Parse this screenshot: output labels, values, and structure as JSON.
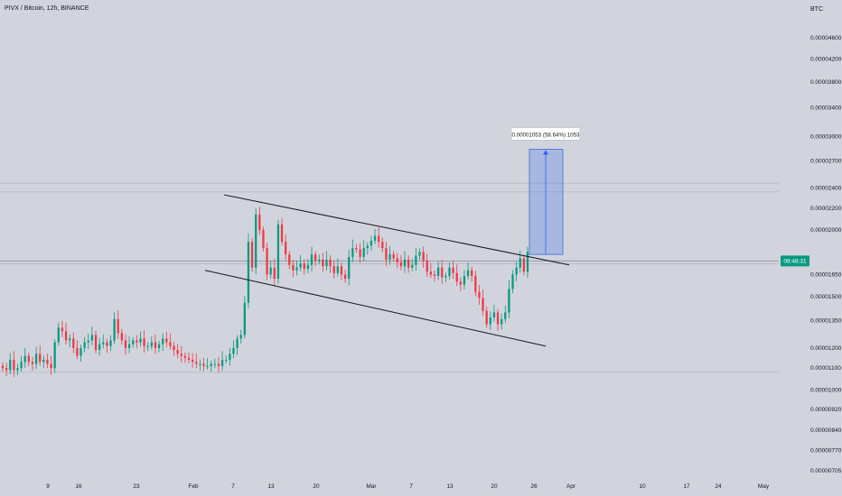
{
  "chart_data": {
    "type": "candlestick",
    "title": "PIVX / Bitcoin, 12h, BINANCE",
    "ylabel": "BTC",
    "xlabel": "",
    "y_axis": {
      "scale": "log",
      "ticks": [
        "0.00004600",
        "0.00004200",
        "0.00003800",
        "0.00003400",
        "0.00003000",
        "0.00002700",
        "0.00002400",
        "0.00002200",
        "0.00002000",
        "0.00001650",
        "0.00001500",
        "0.00001350",
        "0.00001200",
        "0.00001100",
        "0.00001000",
        "0.00000920",
        "0.00000840",
        "0.00000770",
        "0.00000705"
      ]
    },
    "x_axis": {
      "ticks": [
        "9",
        "16",
        "23",
        "Feb",
        "7",
        "13",
        "20",
        "Mar",
        "7",
        "13",
        "20",
        "26",
        "Apr",
        "10",
        "17",
        "24",
        "May"
      ]
    },
    "current_price_label": "08:48:31",
    "measure_label": "0.00001053 (58.64%) 1053",
    "measure": {
      "from": 1.8e-05,
      "to": 2.84e-05
    },
    "grid": false,
    "candle_closes": [
      1.1e-05,
      1.09e-05,
      1.14e-05,
      1.09e-05,
      1.1e-05,
      1.13e-05,
      1.16e-05,
      1.13e-05,
      1.12e-05,
      1.17e-05,
      1.13e-05,
      1.14e-05,
      1.12e-05,
      1.1e-05,
      1.23e-05,
      1.31e-05,
      1.29e-05,
      1.24e-05,
      1.25e-05,
      1.2e-05,
      1.16e-05,
      1.2e-05,
      1.23e-05,
      1.24e-05,
      1.27e-05,
      1.19e-05,
      1.22e-05,
      1.23e-05,
      1.21e-05,
      1.24e-05,
      1.36e-05,
      1.28e-05,
      1.24e-05,
      1.2e-05,
      1.22e-05,
      1.24e-05,
      1.23e-05,
      1.25e-05,
      1.21e-05,
      1.21e-05,
      1.23e-05,
      1.2e-05,
      1.22e-05,
      1.25e-05,
      1.23e-05,
      1.21e-05,
      1.19e-05,
      1.17e-05,
      1.16e-05,
      1.15e-05,
      1.14e-05,
      1.13e-05,
      1.12e-05,
      1.12e-05,
      1.11e-05,
      1.11e-05,
      1.12e-05,
      1.12e-05,
      1.11e-05,
      1.14e-05,
      1.14e-05,
      1.17e-05,
      1.2e-05,
      1.25e-05,
      1.27e-05,
      1.46e-05,
      1.9e-05,
      1.7e-05,
      2.14e-05,
      2e-05,
      1.85e-05,
      1.65e-05,
      1.7e-05,
      1.62e-05,
      2.05e-05,
      1.9e-05,
      1.8e-05,
      1.72e-05,
      1.68e-05,
      1.7e-05,
      1.73e-05,
      1.69e-05,
      1.72e-05,
      1.8e-05,
      1.75e-05,
      1.76e-05,
      1.71e-05,
      1.76e-05,
      1.71e-05,
      1.66e-05,
      1.71e-05,
      1.65e-05,
      1.62e-05,
      1.78e-05,
      1.85e-05,
      1.84e-05,
      1.78e-05,
      1.85e-05,
      1.87e-05,
      1.91e-05,
      1.95e-05,
      1.9e-05,
      1.85e-05,
      1.76e-05,
      1.8e-05,
      1.77e-05,
      1.74e-05,
      1.71e-05,
      1.76e-05,
      1.7e-05,
      1.72e-05,
      1.79e-05,
      1.82e-05,
      1.75e-05,
      1.67e-05,
      1.65e-05,
      1.64e-05,
      1.7e-05,
      1.63e-05,
      1.64e-05,
      1.7e-05,
      1.66e-05,
      1.6e-05,
      1.58e-05,
      1.64e-05,
      1.68e-05,
      1.64e-05,
      1.53e-05,
      1.49e-05,
      1.41e-05,
      1.33e-05,
      1.37e-05,
      1.4e-05,
      1.33e-05,
      1.36e-05,
      1.4e-05,
      1.55e-05,
      1.65e-05,
      1.7e-05,
      1.77e-05,
      1.67e-05,
      1.82e-05
    ]
  }
}
